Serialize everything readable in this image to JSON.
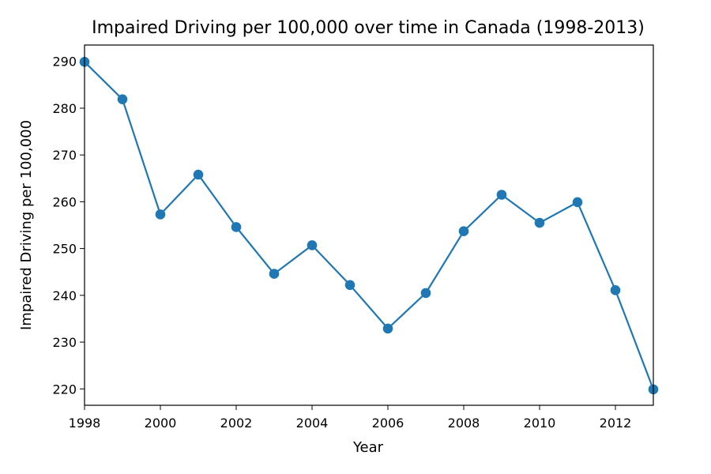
{
  "chart_data": {
    "type": "line",
    "title": "Impaired Driving per 100,000 over time in Canada (1998-2013)",
    "xlabel": "Year",
    "ylabel": "Impaired Driving per 100,000",
    "xlim": [
      1998,
      2013
    ],
    "ylim": [
      216.5,
      293.5
    ],
    "x_ticks": [
      1998,
      2000,
      2002,
      2004,
      2006,
      2008,
      2010,
      2012
    ],
    "y_ticks": [
      220,
      230,
      240,
      250,
      260,
      270,
      280,
      290
    ],
    "grid": false,
    "legend": "none",
    "series": [
      {
        "color": "#1f77b4",
        "marker": "circle",
        "x": [
          1998,
          1999,
          2000,
          2001,
          2002,
          2003,
          2004,
          2005,
          2006,
          2007,
          2008,
          2009,
          2010,
          2011,
          2012,
          2013
        ],
        "y": [
          289.9,
          281.9,
          257.3,
          265.8,
          254.6,
          244.6,
          250.7,
          242.2,
          232.9,
          240.5,
          253.7,
          261.5,
          255.5,
          259.9,
          241.1,
          219.9
        ]
      }
    ]
  }
}
